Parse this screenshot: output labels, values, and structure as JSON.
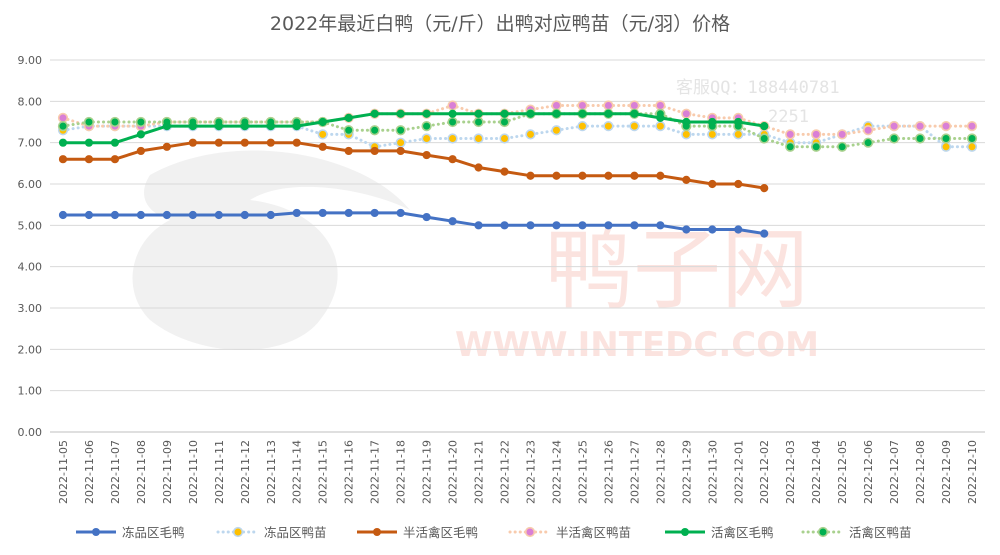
{
  "chart_data": {
    "type": "line",
    "title": "2022年最近白鸭（元/斤）出鸭对应鸭苗（元/羽）价格",
    "xlabel": "",
    "ylabel": "",
    "ylim": [
      0,
      9
    ],
    "y_ticks": [
      "0.00",
      "1.00",
      "2.00",
      "3.00",
      "4.00",
      "5.00",
      "6.00",
      "7.00",
      "8.00",
      "9.00"
    ],
    "grid": true,
    "legend_position": "bottom",
    "categories": [
      "2022-11-05",
      "2022-11-06",
      "2022-11-07",
      "2022-11-08",
      "2022-11-09",
      "2022-11-10",
      "2022-11-11",
      "2022-11-12",
      "2022-11-13",
      "2022-11-14",
      "2022-11-15",
      "2022-11-16",
      "2022-11-17",
      "2022-11-18",
      "2022-11-19",
      "2022-11-20",
      "2022-11-21",
      "2022-11-22",
      "2022-11-23",
      "2022-11-24",
      "2022-11-25",
      "2022-11-26",
      "2022-11-27",
      "2022-11-28",
      "2022-11-29",
      "2022-11-30",
      "2022-12-01",
      "2022-12-02",
      "2022-12-03",
      "2022-12-04",
      "2022-12-05",
      "2022-12-06",
      "2022-12-07",
      "2022-12-08",
      "2022-12-09",
      "2022-12-10"
    ],
    "series": [
      {
        "name": "冻品区毛鸭",
        "color": "#4472c4",
        "style": "solid",
        "values": [
          5.25,
          5.25,
          5.25,
          5.25,
          5.25,
          5.25,
          5.25,
          5.25,
          5.25,
          5.3,
          5.3,
          5.3,
          5.3,
          5.3,
          5.2,
          5.1,
          5.0,
          5.0,
          5.0,
          5.0,
          5.0,
          5.0,
          5.0,
          5.0,
          4.9,
          4.9,
          4.9,
          4.8,
          null,
          null,
          null,
          null,
          null,
          null,
          null,
          null
        ]
      },
      {
        "name": "冻品区鸭苗",
        "color": "#ffc000",
        "line_color": "#bdd7ee",
        "style": "dotted",
        "values": [
          7.3,
          7.4,
          7.4,
          7.4,
          7.4,
          7.4,
          7.4,
          7.4,
          7.4,
          7.4,
          7.2,
          7.2,
          6.9,
          7.0,
          7.1,
          7.1,
          7.1,
          7.1,
          7.2,
          7.3,
          7.4,
          7.4,
          7.4,
          7.4,
          7.2,
          7.2,
          7.2,
          7.2,
          7.0,
          7.0,
          7.2,
          7.4,
          7.4,
          7.4,
          6.9,
          6.9
        ]
      },
      {
        "name": "半活禽区毛鸭",
        "color": "#c55a11",
        "style": "solid",
        "values": [
          6.6,
          6.6,
          6.6,
          6.8,
          6.9,
          7.0,
          7.0,
          7.0,
          7.0,
          7.0,
          6.9,
          6.8,
          6.8,
          6.8,
          6.7,
          6.6,
          6.4,
          6.3,
          6.2,
          6.2,
          6.2,
          6.2,
          6.2,
          6.2,
          6.1,
          6.0,
          6.0,
          5.9,
          null,
          null,
          null,
          null,
          null,
          null,
          null,
          null
        ]
      },
      {
        "name": "半活禽区鸭苗",
        "color": "#d97fd6",
        "line_color": "#f8cbad",
        "style": "dotted",
        "values": [
          7.6,
          7.4,
          7.4,
          7.4,
          7.5,
          7.5,
          7.5,
          7.5,
          7.5,
          7.5,
          7.5,
          7.6,
          7.7,
          7.7,
          7.7,
          7.9,
          7.7,
          7.7,
          7.8,
          7.9,
          7.9,
          7.9,
          7.9,
          7.9,
          7.7,
          7.6,
          7.6,
          7.4,
          7.2,
          7.2,
          7.2,
          7.3,
          7.4,
          7.4,
          7.4,
          7.4
        ]
      },
      {
        "name": "活禽区毛鸭",
        "color": "#00b050",
        "style": "solid",
        "values": [
          7.0,
          7.0,
          7.0,
          7.2,
          7.4,
          7.4,
          7.4,
          7.4,
          7.4,
          7.4,
          7.5,
          7.6,
          7.7,
          7.7,
          7.7,
          7.7,
          7.7,
          7.7,
          7.7,
          7.7,
          7.7,
          7.7,
          7.7,
          7.6,
          7.5,
          7.5,
          7.5,
          7.4,
          null,
          null,
          null,
          null,
          null,
          null,
          null,
          null
        ]
      },
      {
        "name": "活禽区鸭苗",
        "color": "#00b050",
        "line_color": "#a9d18e",
        "style": "dotted",
        "values": [
          7.4,
          7.5,
          7.5,
          7.5,
          7.5,
          7.5,
          7.5,
          7.5,
          7.5,
          7.5,
          7.5,
          7.3,
          7.3,
          7.3,
          7.4,
          7.5,
          7.5,
          7.5,
          7.7,
          7.7,
          7.7,
          7.7,
          7.7,
          7.7,
          7.4,
          7.4,
          7.4,
          7.1,
          6.9,
          6.9,
          6.9,
          7.0,
          7.1,
          7.1,
          7.1,
          7.1
        ]
      }
    ]
  },
  "watermark": {
    "service_text": "客服QQ：188440781",
    "service_text_2": "2251",
    "site_cn": "鸭子网",
    "site_url": "WWW.INTEDC.COM"
  }
}
